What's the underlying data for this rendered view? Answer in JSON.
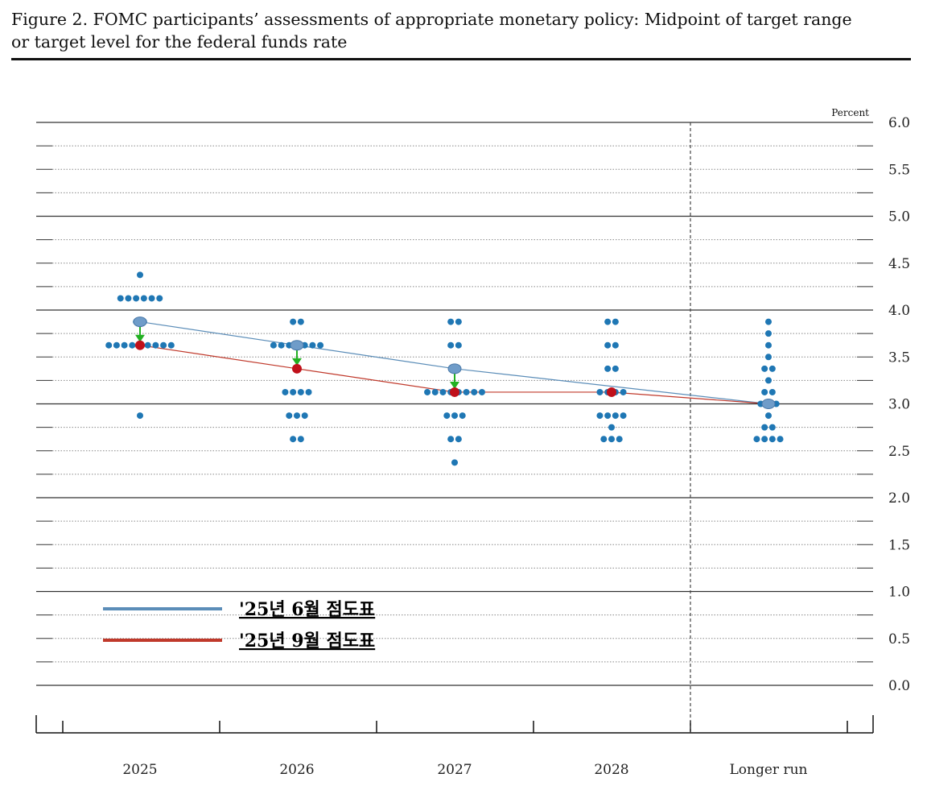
{
  "title": "Figure 2. FOMC participants’ assessments of appropriate monetary policy: Midpoint of target range\nor target level for the federal funds rate",
  "chart_data": {
    "type": "scatter",
    "title": "Figure 2. FOMC participants’ assessments of appropriate monetary policy: Midpoint of target range or target level for the federal funds rate",
    "ylabel": "Percent",
    "xlabel": "",
    "ylim": [
      0.0,
      6.0
    ],
    "y_major_ticks": [
      "6.0",
      "5.5",
      "5.0",
      "4.5",
      "4.0",
      "3.5",
      "3.0",
      "2.5",
      "2.0",
      "1.5",
      "1.0",
      "0.5",
      "0.0"
    ],
    "categories": [
      "2025",
      "2026",
      "2027",
      "2028",
      "Longer run"
    ],
    "dots": [
      {
        "category": "2025",
        "levels": [
          {
            "value": 4.375,
            "count": 1
          },
          {
            "value": 4.125,
            "count": 6
          },
          {
            "value": 3.875,
            "count": 2
          },
          {
            "value": 3.625,
            "count": 9
          },
          {
            "value": 2.875,
            "count": 1
          }
        ]
      },
      {
        "category": "2026",
        "levels": [
          {
            "value": 3.875,
            "count": 2
          },
          {
            "value": 3.625,
            "count": 7
          },
          {
            "value": 3.375,
            "count": 1
          },
          {
            "value": 3.125,
            "count": 4
          },
          {
            "value": 2.875,
            "count": 3
          },
          {
            "value": 2.625,
            "count": 2
          }
        ]
      },
      {
        "category": "2027",
        "levels": [
          {
            "value": 3.875,
            "count": 2
          },
          {
            "value": 3.625,
            "count": 2
          },
          {
            "value": 3.375,
            "count": 1
          },
          {
            "value": 3.125,
            "count": 8
          },
          {
            "value": 2.875,
            "count": 3
          },
          {
            "value": 2.625,
            "count": 2
          },
          {
            "value": 2.375,
            "count": 1
          }
        ]
      },
      {
        "category": "2028",
        "levels": [
          {
            "value": 3.875,
            "count": 2
          },
          {
            "value": 3.625,
            "count": 2
          },
          {
            "value": 3.375,
            "count": 2
          },
          {
            "value": 3.125,
            "count": 4
          },
          {
            "value": 2.875,
            "count": 4
          },
          {
            "value": 2.75,
            "count": 1
          },
          {
            "value": 2.625,
            "count": 3
          }
        ]
      },
      {
        "category": "Longer run",
        "levels": [
          {
            "value": 3.875,
            "count": 1
          },
          {
            "value": 3.75,
            "count": 1
          },
          {
            "value": 3.625,
            "count": 1
          },
          {
            "value": 3.5,
            "count": 1
          },
          {
            "value": 3.375,
            "count": 2
          },
          {
            "value": 3.25,
            "count": 1
          },
          {
            "value": 3.125,
            "count": 2
          },
          {
            "value": 3.0,
            "count": 3
          },
          {
            "value": 2.875,
            "count": 1
          },
          {
            "value": 2.75,
            "count": 2
          },
          {
            "value": 2.625,
            "count": 4
          }
        ]
      }
    ],
    "series": [
      {
        "name": "'25년 6월 점도표",
        "color": "#5b8db8",
        "values": [
          3.875,
          3.625,
          3.375,
          null,
          3.0
        ]
      },
      {
        "name": "'25년 9월 점도표",
        "color": "#c0392b",
        "values": [
          3.625,
          3.375,
          3.125,
          3.125,
          3.0
        ]
      }
    ],
    "dot_color": "#1f77b4",
    "arrow_color": "#22b022",
    "longer_run_divider": "dashed vertical line between 2028 and Longer run",
    "grid": "solid at whole numbers, dotted at quarter points",
    "legend_position": "bottom-left"
  }
}
